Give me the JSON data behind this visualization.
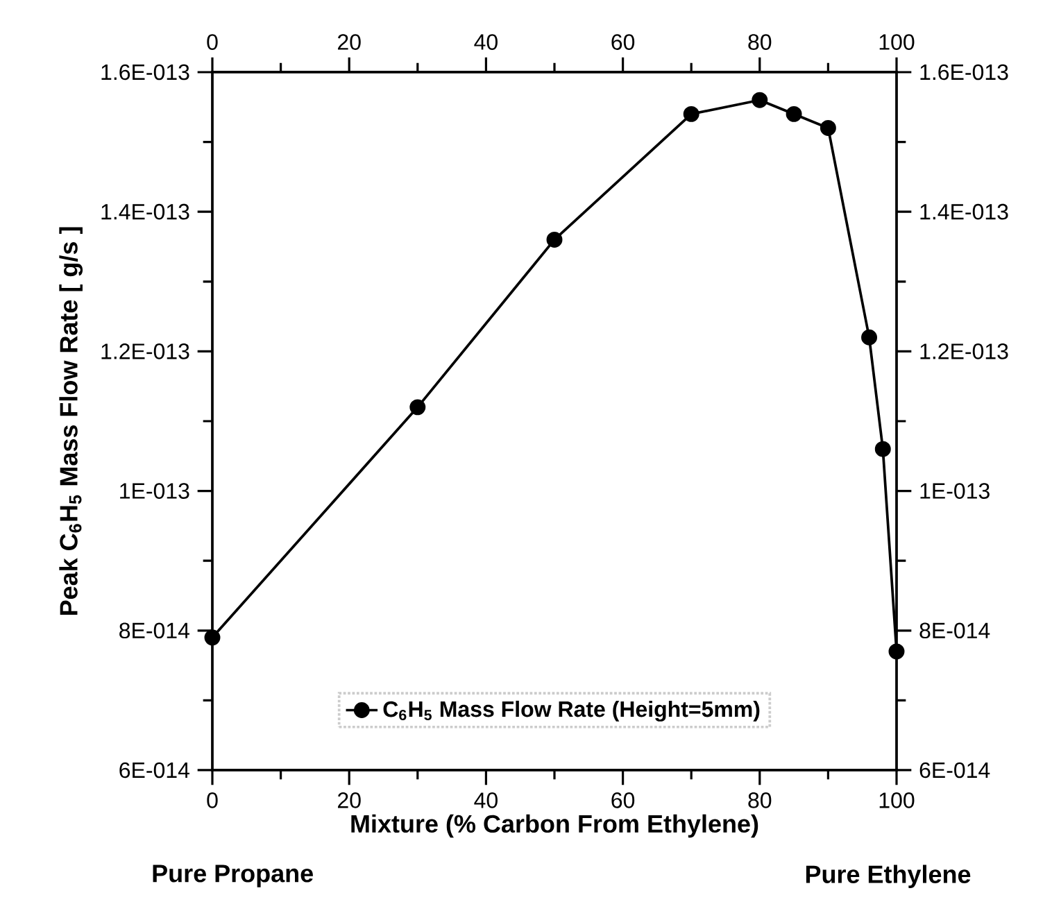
{
  "chart_data": {
    "type": "line",
    "xlabel": "Mixture (% Carbon From Ethylene)",
    "ylabel": "Peak C$_{6}$H$_{5}$ Mass Flow Rate [ g/s ]",
    "x": [
      0,
      30,
      50,
      70,
      80,
      85,
      90,
      96,
      98,
      100
    ],
    "series": [
      {
        "name": "C$_{6}$H$_{5}$ Mass Flow Rate (Height=5mm)",
        "color": "#000000",
        "values": [
          7.9e-14,
          1.12e-13,
          1.36e-13,
          1.54e-13,
          1.56e-13,
          1.54e-13,
          1.52e-13,
          1.22e-13,
          1.06e-13,
          7.7e-14
        ]
      }
    ],
    "xlim": [
      0,
      100
    ],
    "xticks": [
      0,
      20,
      40,
      60,
      80,
      100
    ],
    "x2lim": [
      0,
      100
    ],
    "x2ticks": [
      0,
      20,
      40,
      60,
      80,
      100
    ],
    "ylim": [
      6e-14,
      1.6e-13
    ],
    "yticks": [
      {
        "value": 6e-14,
        "label": "6E-014"
      },
      {
        "value": 8e-14,
        "label": "8E-014"
      },
      {
        "value": 1e-13,
        "label": "1E-013"
      },
      {
        "value": 1.2e-13,
        "label": "1.2E-013"
      },
      {
        "value": 1.4e-13,
        "label": "1.4E-013"
      },
      {
        "value": 1.6e-13,
        "label": "1.6E-013"
      }
    ],
    "y2lim": [
      6e-14,
      1.6e-13
    ],
    "y2ticks": [
      {
        "value": 6e-14,
        "label": "6E-014"
      },
      {
        "value": 8e-14,
        "label": "8E-014"
      },
      {
        "value": 1e-13,
        "label": "1E-013"
      },
      {
        "value": 1.2e-13,
        "label": "1.2E-013"
      },
      {
        "value": 1.4e-13,
        "label": "1.4E-013"
      },
      {
        "value": 1.6e-13,
        "label": "1.6E-013"
      }
    ],
    "annotations": [
      "Pure Propane",
      "Pure Ethylene"
    ],
    "legend": "bottom",
    "grid": false,
    "marker": "circle",
    "line_style": "solid"
  }
}
